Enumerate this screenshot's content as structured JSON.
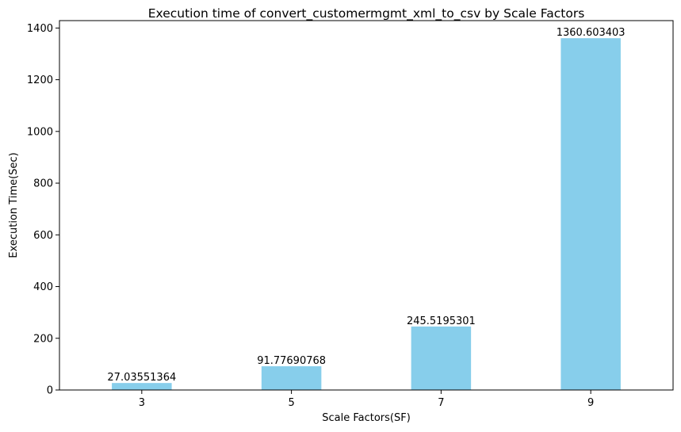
{
  "chart_data": {
    "type": "bar",
    "title": "Execution time of convert_customermgmt_xml_to_csv by Scale Factors",
    "xlabel": "Scale Factors(SF)",
    "ylabel": "Execution Time(Sec)",
    "categories": [
      "3",
      "5",
      "7",
      "9"
    ],
    "values": [
      27.03551364,
      91.77690768,
      245.5195301,
      1360.603403
    ],
    "value_labels": [
      "27.03551364",
      "91.77690768",
      "245.5195301",
      "1360.603403"
    ],
    "ylim": [
      0,
      1428.633573
    ],
    "yticks": [
      0,
      200,
      400,
      600,
      800,
      1000,
      1200,
      1400
    ],
    "grid": false,
    "bar_color": "#87ceeb"
  }
}
